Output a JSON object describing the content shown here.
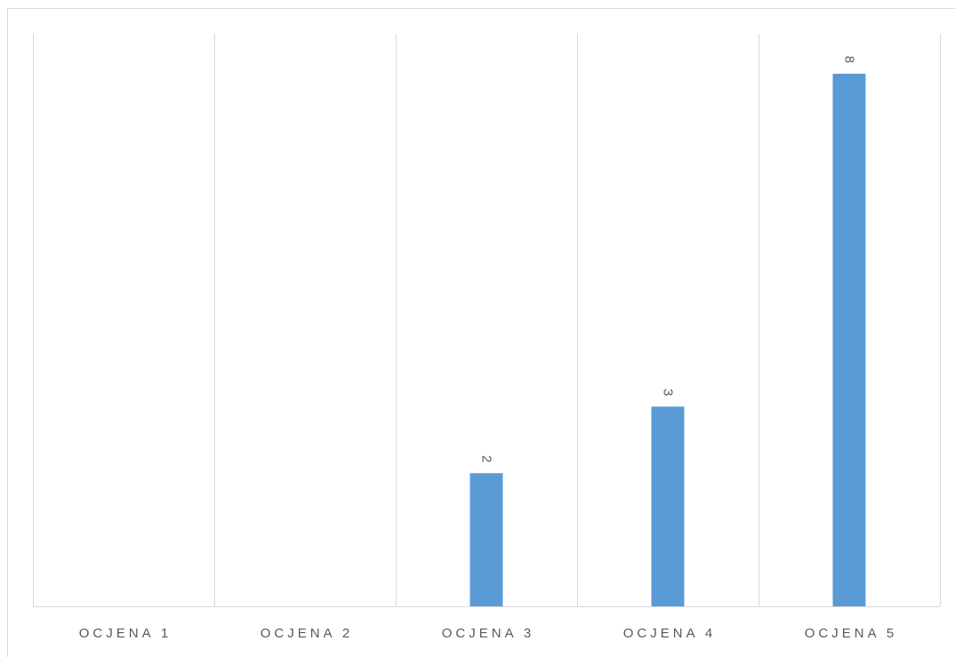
{
  "chart_data": {
    "type": "bar",
    "categories": [
      "OCJENA 1",
      "OCJENA 2",
      "OCJENA 3",
      "OCJENA 4",
      "OCJENA 5"
    ],
    "values": [
      0,
      0,
      2,
      3,
      8
    ],
    "data_labels": [
      "",
      "",
      "2",
      "3",
      "8"
    ],
    "ylim": [
      0,
      8.6
    ],
    "grid": "vertical",
    "bar_color": "#5b9bd5",
    "grid_color": "#d9d9d9",
    "label_color": "#595959"
  }
}
